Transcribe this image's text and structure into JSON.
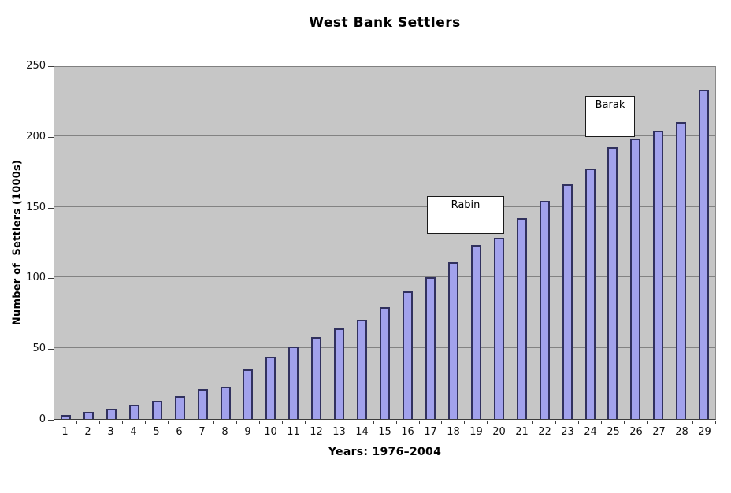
{
  "title": "West Bank Settlers",
  "chart_data": {
    "type": "bar",
    "title": "West Bank Settlers",
    "xlabel": "Years: 1976–2004",
    "ylabel": "Number of  Settlers (1000s)",
    "categories": [
      "1",
      "2",
      "3",
      "4",
      "5",
      "6",
      "7",
      "8",
      "9",
      "10",
      "11",
      "12",
      "13",
      "14",
      "15",
      "16",
      "17",
      "18",
      "19",
      "20",
      "21",
      "22",
      "23",
      "24",
      "25",
      "26",
      "27",
      "28",
      "29"
    ],
    "values": [
      3,
      5,
      7,
      10,
      13,
      16,
      21,
      23,
      35,
      44,
      51,
      58,
      64,
      70,
      79,
      90,
      100,
      111,
      123,
      128,
      142,
      154,
      166,
      177,
      192,
      198,
      204,
      210,
      233
    ],
    "ylim": [
      0,
      250
    ],
    "yticks": [
      0,
      50,
      100,
      150,
      200,
      250
    ],
    "grid": "horizontal",
    "legend": "none",
    "colors": {
      "plot_background": "#c6c6c6",
      "bar_fill": "#a2a2ec",
      "bar_border": "#31315e",
      "gridline": "#828282"
    },
    "annotations": [
      {
        "label": "Rabin"
      },
      {
        "label": "Barak"
      }
    ]
  }
}
